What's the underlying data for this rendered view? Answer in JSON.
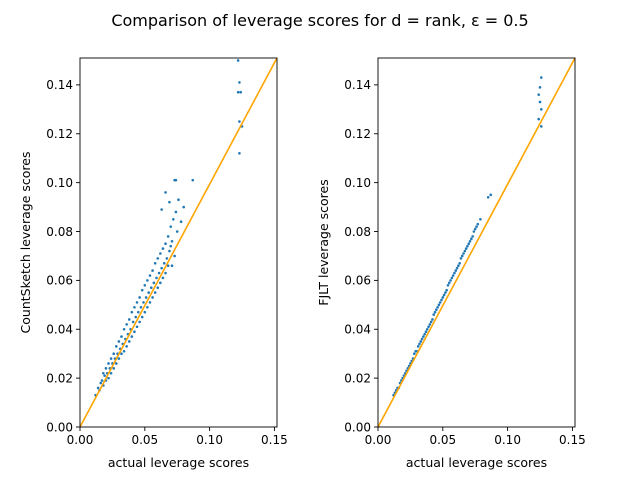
{
  "figure": {
    "title": "Comparison of leverage scores for d = rank, ε = 0.5",
    "colors": {
      "points": "#1f77b4",
      "reference_line": "#ffa500"
    }
  },
  "chart_data": [
    {
      "type": "scatter",
      "xlabel": "actual leverage scores",
      "ylabel": "CountSketch leverage scores",
      "xlim": [
        0,
        0.152
      ],
      "ylim": [
        0,
        0.151
      ],
      "xticks": [
        0.0,
        0.05,
        0.1,
        0.15
      ],
      "xtick_labels": [
        "0.00",
        "0.05",
        "0.10",
        "0.15"
      ],
      "yticks": [
        0.0,
        0.02,
        0.04,
        0.06,
        0.08,
        0.1,
        0.12,
        0.14
      ],
      "ytick_labels": [
        "0.00",
        "0.02",
        "0.04",
        "0.06",
        "0.08",
        "0.10",
        "0.12",
        "0.14"
      ],
      "reference_line": {
        "from": [
          0,
          0
        ],
        "to": [
          0.152,
          0.152
        ]
      },
      "points": [
        [
          0.012,
          0.013
        ],
        [
          0.014,
          0.016
        ],
        [
          0.015,
          0.015
        ],
        [
          0.016,
          0.018
        ],
        [
          0.017,
          0.019
        ],
        [
          0.018,
          0.017
        ],
        [
          0.018,
          0.022
        ],
        [
          0.019,
          0.021
        ],
        [
          0.02,
          0.019
        ],
        [
          0.02,
          0.024
        ],
        [
          0.021,
          0.022
        ],
        [
          0.022,
          0.02
        ],
        [
          0.022,
          0.026
        ],
        [
          0.023,
          0.024
        ],
        [
          0.024,
          0.022
        ],
        [
          0.024,
          0.028
        ],
        [
          0.025,
          0.026
        ],
        [
          0.026,
          0.024
        ],
        [
          0.026,
          0.03
        ],
        [
          0.027,
          0.028
        ],
        [
          0.028,
          0.026
        ],
        [
          0.028,
          0.033
        ],
        [
          0.029,
          0.03
        ],
        [
          0.03,
          0.028
        ],
        [
          0.03,
          0.035
        ],
        [
          0.031,
          0.032
        ],
        [
          0.032,
          0.03
        ],
        [
          0.032,
          0.037
        ],
        [
          0.033,
          0.034
        ],
        [
          0.034,
          0.031
        ],
        [
          0.034,
          0.04
        ],
        [
          0.035,
          0.036
        ],
        [
          0.036,
          0.033
        ],
        [
          0.036,
          0.042
        ],
        [
          0.037,
          0.038
        ],
        [
          0.038,
          0.035
        ],
        [
          0.038,
          0.044
        ],
        [
          0.039,
          0.04
        ],
        [
          0.04,
          0.037
        ],
        [
          0.04,
          0.047
        ],
        [
          0.041,
          0.043
        ],
        [
          0.042,
          0.039
        ],
        [
          0.042,
          0.049
        ],
        [
          0.043,
          0.045
        ],
        [
          0.044,
          0.041
        ],
        [
          0.044,
          0.051
        ],
        [
          0.045,
          0.047
        ],
        [
          0.046,
          0.043
        ],
        [
          0.046,
          0.053
        ],
        [
          0.047,
          0.049
        ],
        [
          0.048,
          0.045
        ],
        [
          0.048,
          0.056
        ],
        [
          0.049,
          0.051
        ],
        [
          0.05,
          0.047
        ],
        [
          0.05,
          0.058
        ],
        [
          0.051,
          0.053
        ],
        [
          0.052,
          0.049
        ],
        [
          0.052,
          0.06
        ],
        [
          0.053,
          0.055
        ],
        [
          0.054,
          0.051
        ],
        [
          0.054,
          0.062
        ],
        [
          0.055,
          0.057
        ],
        [
          0.056,
          0.053
        ],
        [
          0.056,
          0.064
        ],
        [
          0.057,
          0.059
        ],
        [
          0.058,
          0.055
        ],
        [
          0.058,
          0.067
        ],
        [
          0.059,
          0.061
        ],
        [
          0.06,
          0.057
        ],
        [
          0.06,
          0.069
        ],
        [
          0.061,
          0.063
        ],
        [
          0.062,
          0.059
        ],
        [
          0.062,
          0.071
        ],
        [
          0.063,
          0.065
        ],
        [
          0.064,
          0.061
        ],
        [
          0.064,
          0.073
        ],
        [
          0.065,
          0.067
        ],
        [
          0.066,
          0.063
        ],
        [
          0.066,
          0.075
        ],
        [
          0.067,
          0.069
        ],
        [
          0.068,
          0.066
        ],
        [
          0.068,
          0.078
        ],
        [
          0.069,
          0.072
        ],
        [
          0.07,
          0.074
        ],
        [
          0.07,
          0.082
        ],
        [
          0.071,
          0.076
        ],
        [
          0.072,
          0.085
        ],
        [
          0.073,
          0.07
        ],
        [
          0.074,
          0.088
        ],
        [
          0.075,
          0.08
        ],
        [
          0.076,
          0.093
        ],
        [
          0.073,
          0.101
        ],
        [
          0.074,
          0.101
        ],
        [
          0.069,
          0.092
        ],
        [
          0.078,
          0.084
        ],
        [
          0.08,
          0.09
        ],
        [
          0.087,
          0.101
        ],
        [
          0.066,
          0.096
        ],
        [
          0.063,
          0.089
        ],
        [
          0.071,
          0.066
        ],
        [
          0.122,
          0.15
        ],
        [
          0.123,
          0.141
        ],
        [
          0.122,
          0.137
        ],
        [
          0.124,
          0.137
        ],
        [
          0.123,
          0.125
        ],
        [
          0.125,
          0.123
        ],
        [
          0.123,
          0.112
        ]
      ]
    },
    {
      "type": "scatter",
      "xlabel": "actual leverage scores",
      "ylabel": "FJLT leverage scores",
      "xlim": [
        0,
        0.152
      ],
      "ylim": [
        0,
        0.151
      ],
      "xticks": [
        0.0,
        0.05,
        0.1,
        0.15
      ],
      "xtick_labels": [
        "0.00",
        "0.05",
        "0.10",
        "0.15"
      ],
      "yticks": [
        0.0,
        0.02,
        0.04,
        0.06,
        0.08,
        0.1,
        0.12,
        0.14
      ],
      "ytick_labels": [
        "0.00",
        "0.02",
        "0.04",
        "0.06",
        "0.08",
        "0.10",
        "0.12",
        "0.14"
      ],
      "reference_line": {
        "from": [
          0,
          0
        ],
        "to": [
          0.152,
          0.152
        ]
      },
      "points": [
        [
          0.012,
          0.013
        ],
        [
          0.013,
          0.014
        ],
        [
          0.014,
          0.015
        ],
        [
          0.015,
          0.016
        ],
        [
          0.016,
          0.016
        ],
        [
          0.017,
          0.018
        ],
        [
          0.018,
          0.019
        ],
        [
          0.019,
          0.02
        ],
        [
          0.02,
          0.021
        ],
        [
          0.021,
          0.022
        ],
        [
          0.022,
          0.023
        ],
        [
          0.023,
          0.024
        ],
        [
          0.024,
          0.025
        ],
        [
          0.025,
          0.026
        ],
        [
          0.026,
          0.027
        ],
        [
          0.027,
          0.028
        ],
        [
          0.028,
          0.03
        ],
        [
          0.029,
          0.031
        ],
        [
          0.03,
          0.031
        ],
        [
          0.031,
          0.033
        ],
        [
          0.032,
          0.034
        ],
        [
          0.033,
          0.035
        ],
        [
          0.034,
          0.036
        ],
        [
          0.035,
          0.037
        ],
        [
          0.036,
          0.038
        ],
        [
          0.037,
          0.039
        ],
        [
          0.038,
          0.04
        ],
        [
          0.039,
          0.041
        ],
        [
          0.04,
          0.042
        ],
        [
          0.041,
          0.043
        ],
        [
          0.042,
          0.044
        ],
        [
          0.043,
          0.046
        ],
        [
          0.044,
          0.047
        ],
        [
          0.045,
          0.048
        ],
        [
          0.046,
          0.049
        ],
        [
          0.047,
          0.05
        ],
        [
          0.048,
          0.051
        ],
        [
          0.049,
          0.052
        ],
        [
          0.05,
          0.053
        ],
        [
          0.051,
          0.054
        ],
        [
          0.052,
          0.055
        ],
        [
          0.053,
          0.056
        ],
        [
          0.054,
          0.058
        ],
        [
          0.055,
          0.059
        ],
        [
          0.056,
          0.06
        ],
        [
          0.057,
          0.061
        ],
        [
          0.058,
          0.062
        ],
        [
          0.059,
          0.063
        ],
        [
          0.06,
          0.064
        ],
        [
          0.061,
          0.065
        ],
        [
          0.062,
          0.066
        ],
        [
          0.063,
          0.067
        ],
        [
          0.064,
          0.069
        ],
        [
          0.065,
          0.07
        ],
        [
          0.066,
          0.071
        ],
        [
          0.067,
          0.072
        ],
        [
          0.068,
          0.073
        ],
        [
          0.069,
          0.074
        ],
        [
          0.07,
          0.075
        ],
        [
          0.071,
          0.076
        ],
        [
          0.072,
          0.077
        ],
        [
          0.073,
          0.078
        ],
        [
          0.074,
          0.08
        ],
        [
          0.075,
          0.081
        ],
        [
          0.076,
          0.082
        ],
        [
          0.077,
          0.083
        ],
        [
          0.079,
          0.085
        ],
        [
          0.085,
          0.094
        ],
        [
          0.087,
          0.095
        ],
        [
          0.126,
          0.143
        ],
        [
          0.125,
          0.139
        ],
        [
          0.124,
          0.136
        ],
        [
          0.125,
          0.133
        ],
        [
          0.126,
          0.13
        ],
        [
          0.124,
          0.126
        ],
        [
          0.126,
          0.123
        ]
      ]
    }
  ]
}
